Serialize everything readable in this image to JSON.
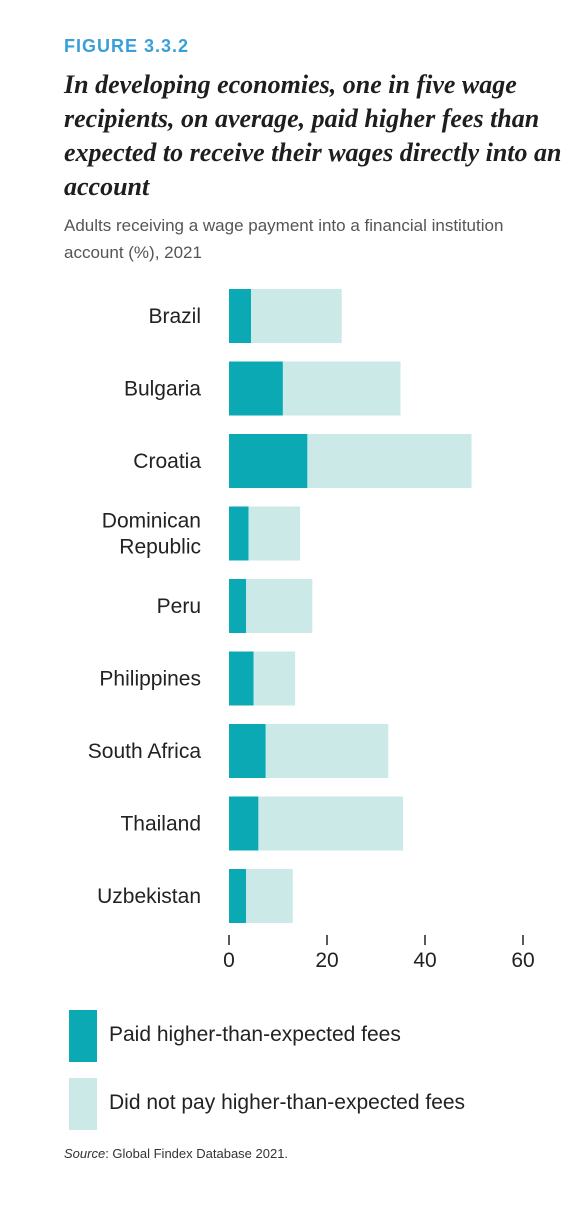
{
  "figure_label": "FIGURE 3.3.2",
  "colors": {
    "paid": "#0aa9b3",
    "not_paid": "#cbe9e7",
    "figure_label": "#3a9fd8"
  },
  "chart_data": {
    "type": "bar",
    "orientation": "horizontal",
    "stacked": true,
    "title": "In developing economies, one in five wage recipients, on average, paid higher fees than expected to receive their wages directly into an account",
    "subtitle": "Adults receiving a wage payment into a financial institution account (%), 2021",
    "categories": [
      "Brazil",
      "Bulgaria",
      "Croatia",
      "Dominican Republic",
      "Peru",
      "Philippines",
      "South Africa",
      "Thailand",
      "Uzbekistan"
    ],
    "series": [
      {
        "name": "Paid higher-than-expected fees",
        "values": [
          4.5,
          11,
          16,
          4,
          3.5,
          5,
          7.5,
          6,
          3.5
        ]
      },
      {
        "name": "Did not pay higher-than-expected fees",
        "values": [
          18.5,
          24,
          33.5,
          10.5,
          13.5,
          8.5,
          25,
          29.5,
          9.5
        ]
      }
    ],
    "xlim": [
      0,
      60
    ],
    "xticks": [
      "0",
      "20",
      "40",
      "60"
    ],
    "grid": false,
    "legend_position": "bottom"
  },
  "source": {
    "label": "Source",
    "text": ": Global Findex Database 2021."
  }
}
